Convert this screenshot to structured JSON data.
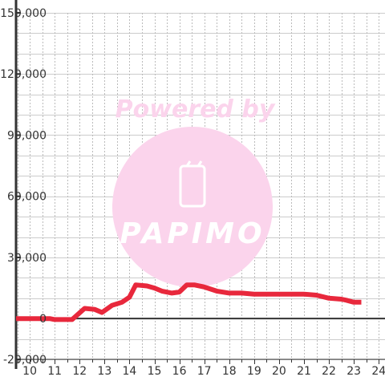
{
  "chart_data": {
    "type": "line",
    "title": "",
    "xlabel": "",
    "ylabel": "",
    "x_ticks": [
      10,
      11,
      12,
      13,
      14,
      15,
      16,
      17,
      18,
      19,
      20,
      21,
      22,
      23,
      24
    ],
    "y_ticks": [
      -20000,
      0,
      30000,
      60000,
      90000,
      120000,
      150000
    ],
    "y_tick_labels": [
      "-20,000",
      "0",
      "30,000",
      "60,000",
      "90,000",
      "120,000",
      "150,000"
    ],
    "xlim": [
      9.45,
      24.25
    ],
    "ylim": [
      -20000,
      150000
    ],
    "grid": true,
    "series": [
      {
        "color": "#e8283c",
        "x": [
          9.45,
          10.5,
          10.8,
          11.0,
          11.7,
          12.2,
          12.6,
          12.9,
          13.3,
          13.7,
          14.0,
          14.25,
          14.7,
          15.0,
          15.3,
          15.7,
          16.0,
          16.3,
          16.6,
          17.0,
          17.5,
          18.0,
          18.5,
          19.0,
          20.0,
          20.5,
          21.0,
          21.5,
          22.0,
          22.5,
          22.7,
          23.0,
          23.3
        ],
        "y": [
          0,
          0,
          0,
          -500,
          -500,
          5000,
          4500,
          3000,
          6500,
          8000,
          10500,
          16500,
          16000,
          15000,
          13500,
          12500,
          13000,
          16500,
          16500,
          15500,
          13500,
          12500,
          12500,
          12000,
          12000,
          12000,
          12000,
          11500,
          10000,
          9500,
          9000,
          8000,
          8000
        ]
      }
    ]
  },
  "watermark": {
    "text": "Powered by",
    "logo_text": "PAPIMO",
    "color": "#fbd4ec"
  }
}
